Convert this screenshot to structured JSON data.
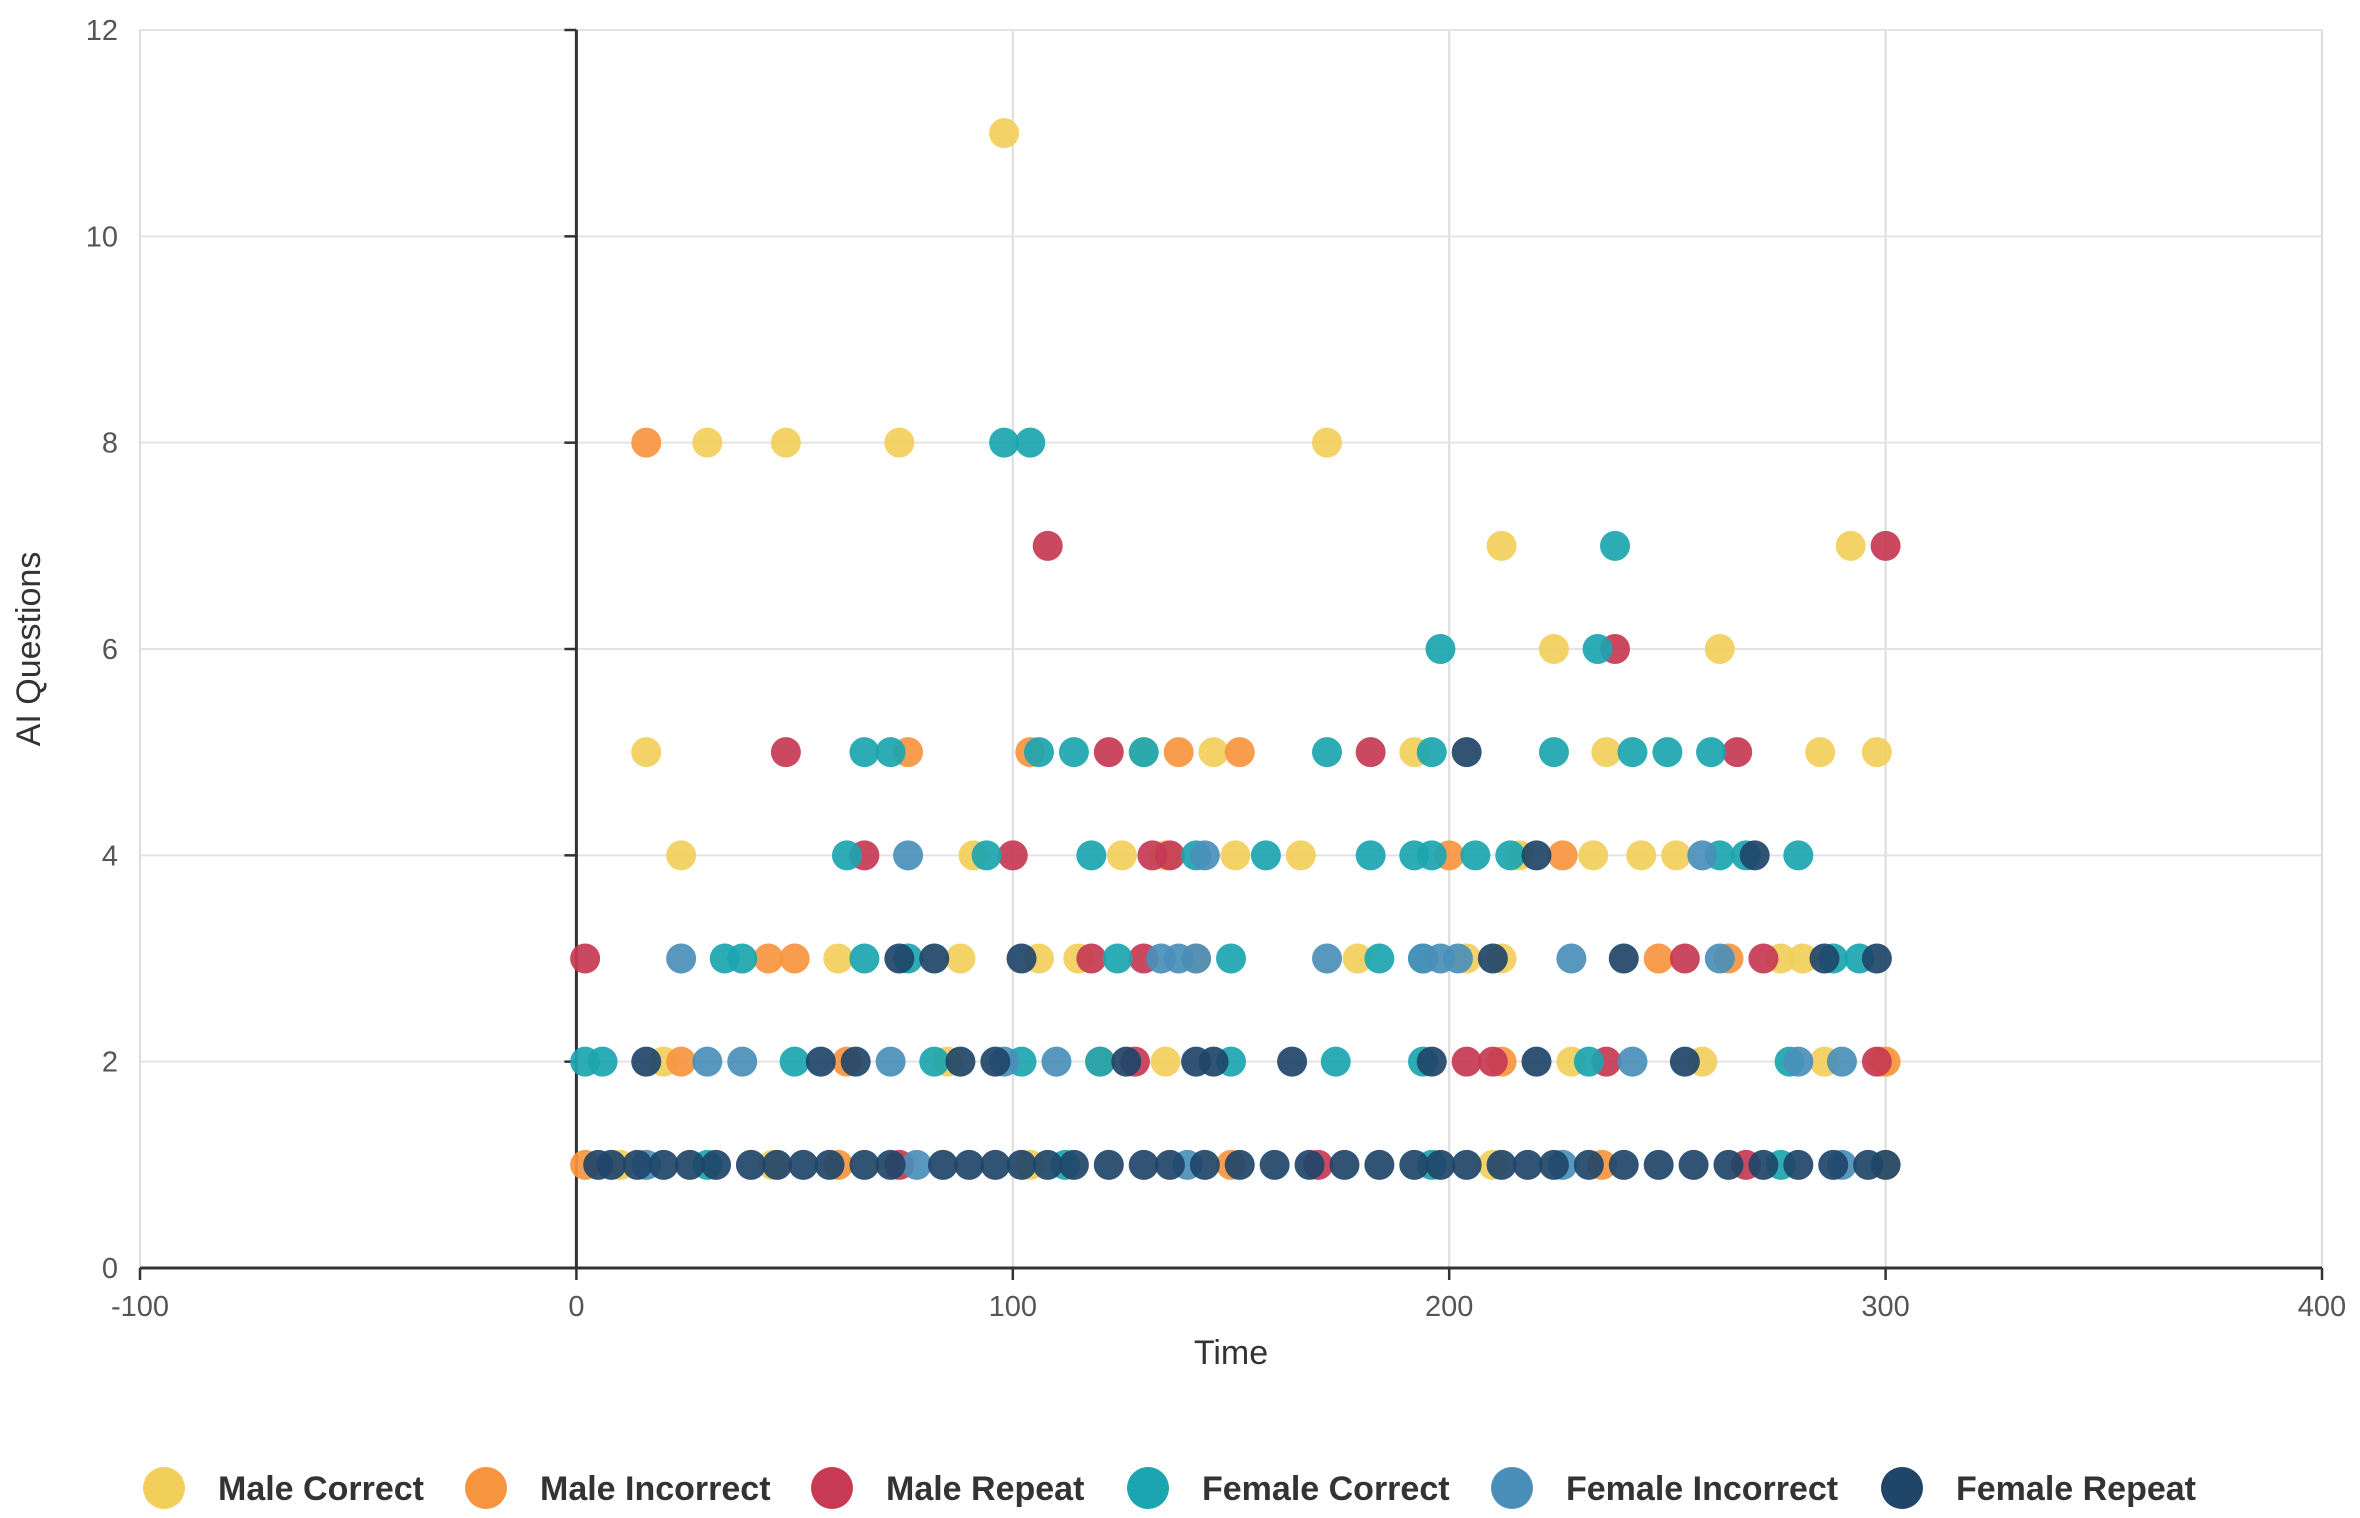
{
  "chart_data": {
    "type": "scatter",
    "title": "",
    "xlabel": "Time",
    "ylabel": "AI Questions",
    "xlim": [
      -100,
      400
    ],
    "ylim": [
      0,
      12
    ],
    "x_ticks": [
      "-100",
      "0",
      "100",
      "200",
      "300",
      "400"
    ],
    "y_ticks": [
      "0",
      "2",
      "4",
      "6",
      "8",
      "10",
      "12"
    ],
    "grid": true,
    "legend_position": "bottom",
    "series": [
      {
        "name": "Male Correct",
        "color": "#f2cf5b",
        "points": [
          [
            98,
            11
          ],
          [
            30,
            8
          ],
          [
            48,
            8
          ],
          [
            74,
            8
          ],
          [
            172,
            8
          ],
          [
            212,
            7
          ],
          [
            292,
            7
          ],
          [
            224,
            6
          ],
          [
            262,
            6
          ],
          [
            16,
            5
          ],
          [
            192,
            5
          ],
          [
            236,
            5
          ],
          [
            285,
            5
          ],
          [
            298,
            5
          ],
          [
            146,
            5
          ],
          [
            130,
            5
          ],
          [
            24,
            4
          ],
          [
            91,
            4
          ],
          [
            125,
            4
          ],
          [
            135,
            4
          ],
          [
            151,
            4
          ],
          [
            166,
            4
          ],
          [
            216,
            4
          ],
          [
            233,
            4
          ],
          [
            244,
            4
          ],
          [
            252,
            4
          ],
          [
            60,
            3
          ],
          [
            88,
            3
          ],
          [
            106,
            3
          ],
          [
            115,
            3
          ],
          [
            179,
            3
          ],
          [
            204,
            3
          ],
          [
            212,
            3
          ],
          [
            276,
            3
          ],
          [
            281,
            3
          ],
          [
            20,
            2
          ],
          [
            85,
            2
          ],
          [
            135,
            2
          ],
          [
            228,
            2
          ],
          [
            258,
            2
          ],
          [
            286,
            2
          ],
          [
            299,
            2
          ],
          [
            10,
            1
          ],
          [
            45,
            1
          ],
          [
            104,
            1
          ],
          [
            210,
            1
          ],
          [
            300,
            1
          ]
        ]
      },
      {
        "name": "Male Incorrect",
        "color": "#f7953f",
        "points": [
          [
            16,
            8
          ],
          [
            76,
            5
          ],
          [
            104,
            5
          ],
          [
            138,
            5
          ],
          [
            152,
            5
          ],
          [
            200,
            4
          ],
          [
            226,
            4
          ],
          [
            44,
            3
          ],
          [
            50,
            3
          ],
          [
            142,
            3
          ],
          [
            248,
            3
          ],
          [
            264,
            3
          ],
          [
            24,
            2
          ],
          [
            62,
            2
          ],
          [
            212,
            2
          ],
          [
            120,
            2
          ],
          [
            300,
            2
          ],
          [
            2,
            1
          ],
          [
            60,
            1
          ],
          [
            150,
            1
          ],
          [
            235,
            1
          ]
        ]
      },
      {
        "name": "Male Repeat",
        "color": "#c63a54",
        "points": [
          [
            108,
            7
          ],
          [
            300,
            7
          ],
          [
            238,
            6
          ],
          [
            48,
            5
          ],
          [
            122,
            5
          ],
          [
            182,
            5
          ],
          [
            266,
            5
          ],
          [
            66,
            4
          ],
          [
            100,
            4
          ],
          [
            132,
            4
          ],
          [
            136,
            4
          ],
          [
            2,
            3
          ],
          [
            118,
            3
          ],
          [
            130,
            3
          ],
          [
            254,
            3
          ],
          [
            272,
            3
          ],
          [
            128,
            2
          ],
          [
            204,
            2
          ],
          [
            210,
            2
          ],
          [
            236,
            2
          ],
          [
            298,
            2
          ],
          [
            74,
            1
          ],
          [
            170,
            1
          ],
          [
            268,
            1
          ]
        ]
      },
      {
        "name": "Female Correct",
        "color": "#1ba5b0",
        "points": [
          [
            98,
            8
          ],
          [
            104,
            8
          ],
          [
            238,
            7
          ],
          [
            198,
            6
          ],
          [
            234,
            6
          ],
          [
            66,
            5
          ],
          [
            72,
            5
          ],
          [
            106,
            5
          ],
          [
            114,
            5
          ],
          [
            130,
            5
          ],
          [
            172,
            5
          ],
          [
            196,
            5
          ],
          [
            224,
            5
          ],
          [
            242,
            5
          ],
          [
            250,
            5
          ],
          [
            260,
            5
          ],
          [
            62,
            4
          ],
          [
            94,
            4
          ],
          [
            118,
            4
          ],
          [
            142,
            4
          ],
          [
            158,
            4
          ],
          [
            182,
            4
          ],
          [
            192,
            4
          ],
          [
            196,
            4
          ],
          [
            206,
            4
          ],
          [
            214,
            4
          ],
          [
            262,
            4
          ],
          [
            268,
            4
          ],
          [
            280,
            4
          ],
          [
            34,
            3
          ],
          [
            38,
            3
          ],
          [
            66,
            3
          ],
          [
            76,
            3
          ],
          [
            124,
            3
          ],
          [
            150,
            3
          ],
          [
            184,
            3
          ],
          [
            194,
            3
          ],
          [
            288,
            3
          ],
          [
            294,
            3
          ],
          [
            2,
            2
          ],
          [
            6,
            2
          ],
          [
            50,
            2
          ],
          [
            82,
            2
          ],
          [
            102,
            2
          ],
          [
            120,
            2
          ],
          [
            150,
            2
          ],
          [
            174,
            2
          ],
          [
            194,
            2
          ],
          [
            232,
            2
          ],
          [
            278,
            2
          ],
          [
            30,
            1
          ],
          [
            112,
            1
          ],
          [
            196,
            1
          ],
          [
            276,
            1
          ]
        ]
      },
      {
        "name": "Female Incorrect",
        "color": "#4a8fba",
        "points": [
          [
            76,
            4
          ],
          [
            144,
            4
          ],
          [
            258,
            4
          ],
          [
            24,
            3
          ],
          [
            134,
            3
          ],
          [
            138,
            3
          ],
          [
            142,
            3
          ],
          [
            172,
            3
          ],
          [
            194,
            3
          ],
          [
            198,
            3
          ],
          [
            202,
            3
          ],
          [
            228,
            3
          ],
          [
            262,
            3
          ],
          [
            30,
            2
          ],
          [
            38,
            2
          ],
          [
            72,
            2
          ],
          [
            98,
            2
          ],
          [
            110,
            2
          ],
          [
            242,
            2
          ],
          [
            280,
            2
          ],
          [
            290,
            2
          ],
          [
            16,
            1
          ],
          [
            78,
            1
          ],
          [
            140,
            1
          ],
          [
            226,
            1
          ],
          [
            290,
            1
          ]
        ]
      },
      {
        "name": "Female Repeat",
        "color": "#1f4569",
        "points": [
          [
            204,
            5
          ],
          [
            220,
            4
          ],
          [
            270,
            4
          ],
          [
            74,
            3
          ],
          [
            82,
            3
          ],
          [
            102,
            3
          ],
          [
            210,
            3
          ],
          [
            240,
            3
          ],
          [
            286,
            3
          ],
          [
            298,
            3
          ],
          [
            16,
            2
          ],
          [
            56,
            2
          ],
          [
            64,
            2
          ],
          [
            88,
            2
          ],
          [
            96,
            2
          ],
          [
            126,
            2
          ],
          [
            142,
            2
          ],
          [
            146,
            2
          ],
          [
            164,
            2
          ],
          [
            196,
            2
          ],
          [
            220,
            2
          ],
          [
            254,
            2
          ],
          [
            5,
            1
          ],
          [
            8,
            1
          ],
          [
            14,
            1
          ],
          [
            20,
            1
          ],
          [
            26,
            1
          ],
          [
            32,
            1
          ],
          [
            40,
            1
          ],
          [
            46,
            1
          ],
          [
            52,
            1
          ],
          [
            58,
            1
          ],
          [
            66,
            1
          ],
          [
            72,
            1
          ],
          [
            84,
            1
          ],
          [
            90,
            1
          ],
          [
            96,
            1
          ],
          [
            102,
            1
          ],
          [
            108,
            1
          ],
          [
            114,
            1
          ],
          [
            122,
            1
          ],
          [
            130,
            1
          ],
          [
            136,
            1
          ],
          [
            144,
            1
          ],
          [
            152,
            1
          ],
          [
            160,
            1
          ],
          [
            168,
            1
          ],
          [
            176,
            1
          ],
          [
            184,
            1
          ],
          [
            192,
            1
          ],
          [
            198,
            1
          ],
          [
            204,
            1
          ],
          [
            212,
            1
          ],
          [
            218,
            1
          ],
          [
            224,
            1
          ],
          [
            232,
            1
          ],
          [
            240,
            1
          ],
          [
            248,
            1
          ],
          [
            256,
            1
          ],
          [
            264,
            1
          ],
          [
            272,
            1
          ],
          [
            280,
            1
          ],
          [
            288,
            1
          ],
          [
            296,
            1
          ],
          [
            300,
            1
          ]
        ]
      }
    ]
  }
}
